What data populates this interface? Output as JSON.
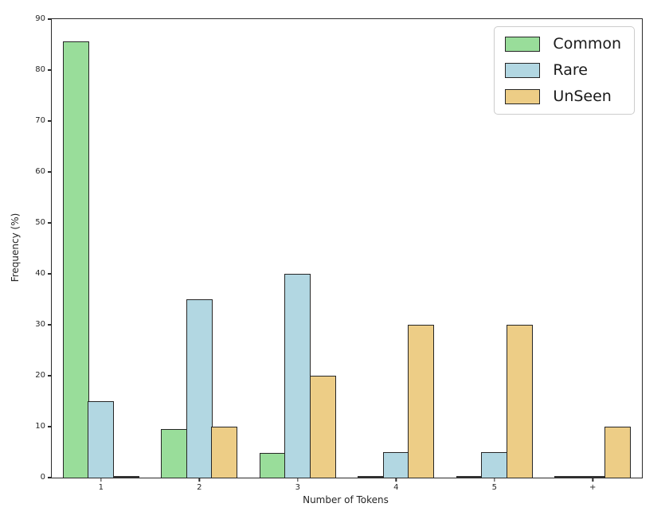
{
  "chart_data": {
    "type": "bar",
    "title": "",
    "xlabel": "Number of Tokens",
    "ylabel": "Frequency (%)",
    "categories": [
      "1",
      "2",
      "3",
      "4",
      "5",
      "+"
    ],
    "series": [
      {
        "name": "Common",
        "color": "#99dd9a",
        "values": [
          85.7,
          9.5,
          4.8,
          0,
          0,
          0
        ]
      },
      {
        "name": "Rare",
        "color": "#b2d7e2",
        "values": [
          15,
          35,
          40,
          5,
          5,
          0
        ]
      },
      {
        "name": "UnSeen",
        "color": "#edcd86",
        "values": [
          0,
          10,
          20,
          30,
          30,
          10
        ]
      }
    ],
    "ylim": [
      0,
      90
    ],
    "ytick_step": 10,
    "yticks": [
      0,
      10,
      20,
      30,
      40,
      50,
      60,
      70,
      80,
      90
    ],
    "legend_position": "upper right",
    "grid": false,
    "bar_edge_color": "#262626",
    "background_color": "#ffffff"
  }
}
